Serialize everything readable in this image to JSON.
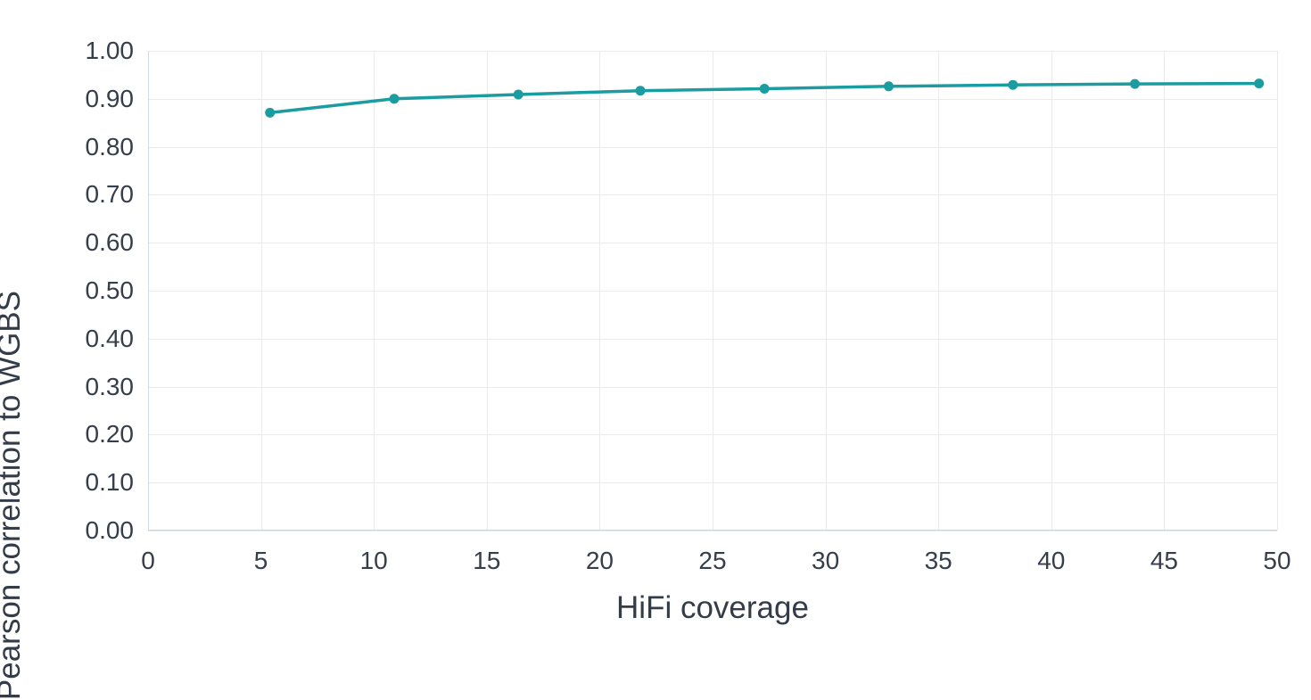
{
  "chart_data": {
    "type": "line",
    "title": "",
    "xlabel": "HiFi coverage",
    "ylabel": "Pearson correlation to WGBS",
    "series": [
      {
        "name": "Pearson correlation to WGBS",
        "x": [
          5.4,
          10.9,
          16.4,
          21.8,
          27.3,
          32.8,
          38.3,
          43.7,
          49.2
        ],
        "y": [
          0.871,
          0.9,
          0.909,
          0.917,
          0.921,
          0.926,
          0.929,
          0.931,
          0.932
        ]
      }
    ],
    "xlim": [
      0,
      50
    ],
    "ylim": [
      0.0,
      1.0
    ],
    "x_ticks": [
      0,
      5,
      10,
      15,
      20,
      25,
      30,
      35,
      40,
      45,
      50
    ],
    "y_ticks": [
      0.0,
      0.1,
      0.2,
      0.3,
      0.4,
      0.5,
      0.6,
      0.7,
      0.8,
      0.9,
      1.0
    ],
    "y_tick_format": "2dp",
    "grid": true,
    "legend": "none",
    "marker": "circle"
  },
  "style": {
    "line_color": "#1a9ca1",
    "marker_color": "#1a9ca1",
    "grid_color": "#ebebeb",
    "axis_line_color": "#cfd6dc",
    "text_color": "#343b49",
    "background": "#ffffff"
  }
}
